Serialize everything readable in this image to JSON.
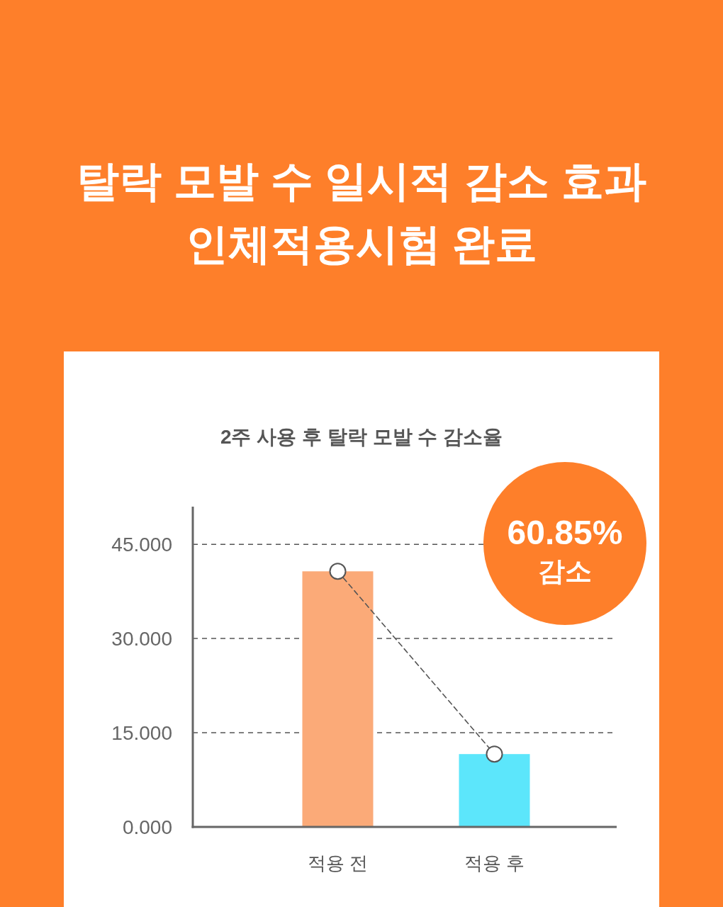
{
  "chart_data": {
    "type": "bar",
    "title": "탈락 모발 수 일시적 감소 효과\n인체적용시험 완료",
    "subtitle": "2주 사용 후 탈락 모발 수 감소율",
    "categories": [
      "적용 전",
      "적용 후"
    ],
    "series": [
      {
        "colors": [
          "#fbaa78",
          "#5ce6fb"
        ],
        "values": [
          40.7,
          11.6
        ]
      },
      {
        "type": "line",
        "color": "#555555",
        "values": [
          40.7,
          11.6
        ],
        "line_style": "dashed",
        "marker": "circle"
      }
    ],
    "ylim": [
      0,
      51
    ],
    "yticks": [
      {
        "value": 0,
        "label": "0.000"
      },
      {
        "value": 15,
        "label": "15.000"
      },
      {
        "value": 30,
        "label": "30.000"
      },
      {
        "value": 45,
        "label": "45.000"
      }
    ],
    "grid": "y",
    "annotations": [
      "60.85%\n감소"
    ]
  }
}
